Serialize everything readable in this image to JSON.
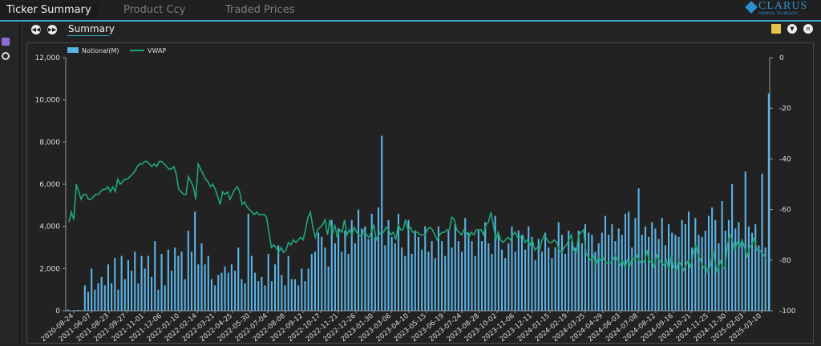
{
  "tabs": [
    {
      "label": "Ticker Summary",
      "active": true
    },
    {
      "label": "Product Ccy",
      "active": false
    },
    {
      "label": "Traded Prices",
      "active": false
    }
  ],
  "brand": {
    "name": "CLARUS",
    "tagline": "FINANCIAL TECHNOLOGY"
  },
  "subtab": {
    "label": "Summary"
  },
  "icons": {
    "nav_prev": "rewind-icon",
    "nav_next": "fast-forward-icon",
    "left": [
      "calendar-icon",
      "magnifier-icon"
    ],
    "right": [
      "document-icon",
      "chevron-down-icon",
      "collapse-icon"
    ]
  },
  "colors": {
    "accent": "#3aa0c8",
    "bars": "#5bb4e8",
    "line": "#1fa77a",
    "background": "#232323"
  },
  "chart_data": {
    "type": "bar",
    "title": "",
    "legend": [
      "Notional(M)",
      "VWAP"
    ],
    "legend_position": "top-left",
    "ylim_left": [
      0,
      12000
    ],
    "ylim_right": [
      -100,
      0
    ],
    "yticks_left": [
      "0",
      "2,000",
      "4,000",
      "6,000",
      "8,000",
      "10,000",
      "12,000"
    ],
    "yticks_right": [
      "0",
      "-20",
      "-40",
      "-60",
      "-80",
      "-100"
    ],
    "grid": false,
    "x_tick_labels": [
      "2020-08-24",
      "2021-06-07",
      "2021-08-23",
      "2021-09-27",
      "2021-11-01",
      "2021-12-06",
      "2022-01-10",
      "2022-02-14",
      "2022-03-21",
      "2022-04-25",
      "2022-05-30",
      "2022-07-04",
      "2022-08-08",
      "2022-09-12",
      "2022-10-17",
      "2022-11-21",
      "2022-12-26",
      "2023-01-30",
      "2023-03-06",
      "2023-04-10",
      "2023-05-15",
      "2023-06-19",
      "2023-07-24",
      "2023-08-28",
      "2023-10-02",
      "2023-11-06",
      "2023-12-11",
      "2024-01-15",
      "2024-02-19",
      "2024-03-25",
      "2024-04-29",
      "2024-06-03",
      "2024-07-08",
      "2024-08-12",
      "2024-09-16",
      "2024-10-21",
      "2024-11-25",
      "2024-12-30",
      "2025-02-03",
      "2025-03-10"
    ],
    "series": [
      {
        "name": "Notional(M)",
        "axis": "left",
        "values": [
          50,
          20,
          30,
          40,
          20,
          1200,
          900,
          2000,
          1000,
          1300,
          1600,
          1200,
          2200,
          1300,
          2500,
          1000,
          2600,
          1500,
          2400,
          1900,
          2800,
          1300,
          2600,
          2000,
          2600,
          1600,
          3300,
          1000,
          2700,
          1200,
          2900,
          1900,
          3000,
          2600,
          2800,
          1500,
          3800,
          2800,
          4700,
          2200,
          3200,
          2200,
          2600,
          1500,
          1200,
          1700,
          1800,
          2100,
          1800,
          2200,
          1900,
          3000,
          1500,
          1300,
          4600,
          2600,
          1800,
          1400,
          1600,
          1200,
          2700,
          1400,
          2200,
          3100,
          1700,
          1200,
          2600,
          1500,
          1500,
          1200,
          2000,
          1400,
          2000,
          2700,
          2800,
          3700,
          3500,
          3000,
          2100,
          4300,
          3200,
          3900,
          2800,
          3800,
          2700,
          4300,
          3200,
          4800,
          3900,
          4000,
          3400,
          4600,
          3500,
          4900,
          8300,
          3100,
          4300,
          3500,
          3200,
          4600,
          3000,
          2600,
          4300,
          2700,
          3800,
          3500,
          2900,
          4000,
          2800,
          3300,
          2500,
          4000,
          3300,
          2600,
          3800,
          3000,
          4100,
          3300,
          2800,
          4400,
          3700,
          3300,
          2600,
          3800,
          3300,
          4200,
          3200,
          2700,
          4500,
          3600,
          2900,
          2500,
          3200,
          4000,
          2800,
          3800,
          3600,
          2900,
          4000,
          3500,
          2400,
          3400,
          2800,
          3700,
          3000,
          2500,
          3000,
          4200,
          3600,
          2700,
          3800,
          3300,
          3000,
          3800,
          3200,
          4100,
          3700,
          3600,
          2800,
          3200,
          3700,
          4500,
          3600,
          4100,
          3300,
          3900,
          3600,
          4600,
          4700,
          3000,
          4400,
          5800,
          3600,
          4000,
          3500,
          4200,
          3900,
          3400,
          4400,
          3100,
          4100,
          3700,
          3600,
          3500,
          4300,
          4100,
          4700,
          3000,
          4400,
          3600,
          3500,
          3800,
          4500,
          4900,
          4300,
          3200,
          5200,
          3800,
          4300,
          6000,
          3900,
          4200,
          3300,
          6600,
          4000,
          3700,
          4100,
          3100,
          6500,
          3000,
          10300
        ]
      },
      {
        "name": "VWAP",
        "axis": "right",
        "values": [
          -65,
          -61,
          -64,
          -50,
          -53,
          -56,
          -54,
          -54,
          -56,
          -56,
          -55,
          -54,
          -54,
          -53,
          -52,
          -52,
          -51,
          -53,
          -51,
          -53,
          -48,
          -50,
          -49,
          -48,
          -48,
          -47,
          -46,
          -45,
          -43,
          -42,
          -42,
          -41,
          -41,
          -42,
          -43,
          -42,
          -43,
          -41,
          -41,
          -42,
          -43,
          -44,
          -44,
          -43,
          -46,
          -52,
          -53,
          -54,
          -54,
          -47,
          -49,
          -51,
          -56,
          -42,
          -44,
          -46,
          -48,
          -49,
          -51,
          -50,
          -52,
          -55,
          -58,
          -53,
          -54,
          -53,
          -56,
          -54,
          -52,
          -51,
          -53,
          -58,
          -57,
          -59,
          -60,
          -61,
          -62,
          -61,
          -62,
          -62,
          -62,
          -63,
          -69,
          -75,
          -74,
          -75,
          -77,
          -75,
          -77,
          -76,
          -73,
          -74,
          -72,
          -73,
          -72,
          -71,
          -72,
          -68,
          -63,
          -61,
          -67,
          -71,
          -68,
          -67,
          -66,
          -64,
          -70,
          -64,
          -70,
          -66,
          -71,
          -68,
          -69,
          -64,
          -70,
          -68,
          -70,
          -67,
          -69,
          -70,
          -71,
          -68,
          -70,
          -71,
          -69,
          -66,
          -72,
          -70,
          -69,
          -69,
          -67,
          -68,
          -70,
          -69,
          -72,
          -66,
          -68,
          -68,
          -64,
          -68,
          -67,
          -69,
          -69,
          -69,
          -70,
          -70,
          -70,
          -68,
          -67,
          -68,
          -70,
          -72,
          -70,
          -69,
          -69,
          -68,
          -68,
          -63,
          -64,
          -68,
          -69,
          -70,
          -68,
          -69,
          -71,
          -69,
          -70,
          -68,
          -68,
          -68,
          -70,
          -66,
          -65,
          -61,
          -66,
          -72,
          -69,
          -72,
          -73,
          -72,
          -71,
          -72,
          -70,
          -69,
          -71,
          -71,
          -70,
          -73,
          -72,
          -74,
          -72,
          -76,
          -75,
          -76,
          -72,
          -70,
          -72,
          -73,
          -73,
          -72,
          -73,
          -76,
          -77,
          -75,
          -74,
          -72,
          -70,
          -76,
          -77,
          -70,
          -69,
          -68,
          -77,
          -79,
          -80,
          -78,
          -82,
          -79,
          -80,
          -79,
          -81,
          -81,
          -81,
          -80,
          -78,
          -80,
          -82,
          -80,
          -83,
          -80,
          -82,
          -79,
          -80,
          -78,
          -81,
          -80,
          -81,
          -76,
          -81,
          -80,
          -83,
          -78,
          -80,
          -81,
          -82,
          -80,
          -84,
          -78,
          -83,
          -84,
          -80,
          -82,
          -84,
          -82,
          -80,
          -83,
          -77,
          -74,
          -78,
          -80,
          -83,
          -82,
          -85,
          -82,
          -76,
          -81,
          -85,
          -80,
          -83,
          -83,
          -74,
          -70,
          -72,
          -76,
          -73,
          -75,
          -72,
          -75,
          -79,
          -75,
          -74,
          -71,
          -76,
          -76,
          -77,
          -78,
          -80
        ]
      }
    ]
  }
}
